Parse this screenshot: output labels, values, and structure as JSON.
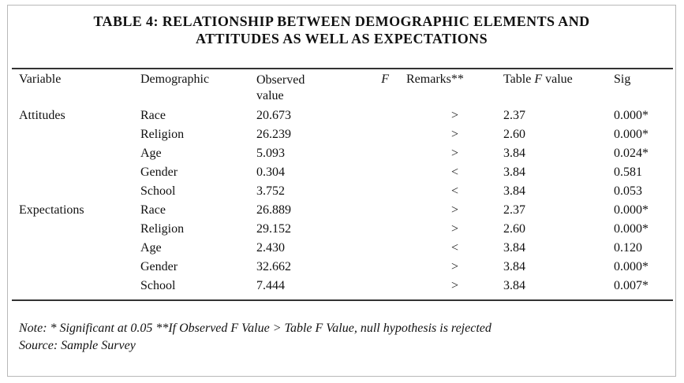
{
  "title_line1": "TABLE 4: RELATIONSHIP BETWEEN DEMOGRAPHIC ELEMENTS AND",
  "title_line2": "ATTITUDES AS WELL AS EXPECTATIONS",
  "headers": {
    "variable": "Variable",
    "demographic": "Demographic",
    "observed_line1": "Observed",
    "observed_line2": "value",
    "f": "F",
    "remarks": "Remarks**",
    "table_f_prefix": "Table ",
    "table_f_italic": "F",
    "table_f_suffix": " value",
    "sig": "Sig"
  },
  "rows": [
    {
      "variable": "Attitudes",
      "demographic": "Race",
      "observed": "20.673",
      "remark": ">",
      "table_f": "2.37",
      "sig": "0.000*"
    },
    {
      "variable": "",
      "demographic": "Religion",
      "observed": "26.239",
      "remark": ">",
      "table_f": "2.60",
      "sig": "0.000*"
    },
    {
      "variable": "",
      "demographic": "Age",
      "observed": "5.093",
      "remark": ">",
      "table_f": "3.84",
      "sig": "0.024*"
    },
    {
      "variable": "",
      "demographic": "Gender",
      "observed": "0.304",
      "remark": "<",
      "table_f": "3.84",
      "sig": "0.581"
    },
    {
      "variable": "",
      "demographic": "School",
      "observed": "3.752",
      "remark": "<",
      "table_f": "3.84",
      "sig": "0.053"
    },
    {
      "variable": "Expectations",
      "demographic": "Race",
      "observed": "26.889",
      "remark": ">",
      "table_f": "2.37",
      "sig": "0.000*"
    },
    {
      "variable": "",
      "demographic": "Religion",
      "observed": "29.152",
      "remark": ">",
      "table_f": "2.60",
      "sig": "0.000*"
    },
    {
      "variable": "",
      "demographic": "Age",
      "observed": "2.430",
      "remark": "<",
      "table_f": "3.84",
      "sig": "0.120"
    },
    {
      "variable": "",
      "demographic": "Gender",
      "observed": "32.662",
      "remark": ">",
      "table_f": "3.84",
      "sig": "0.000*"
    },
    {
      "variable": "",
      "demographic": "School",
      "observed": "7.444",
      "remark": ">",
      "table_f": "3.84",
      "sig": "0.007*"
    }
  ],
  "note_line1": "Note: * Significant at 0.05 **If Observed F Value > Table F Value, null hypothesis is rejected",
  "note_line2": "Source: Sample Survey"
}
